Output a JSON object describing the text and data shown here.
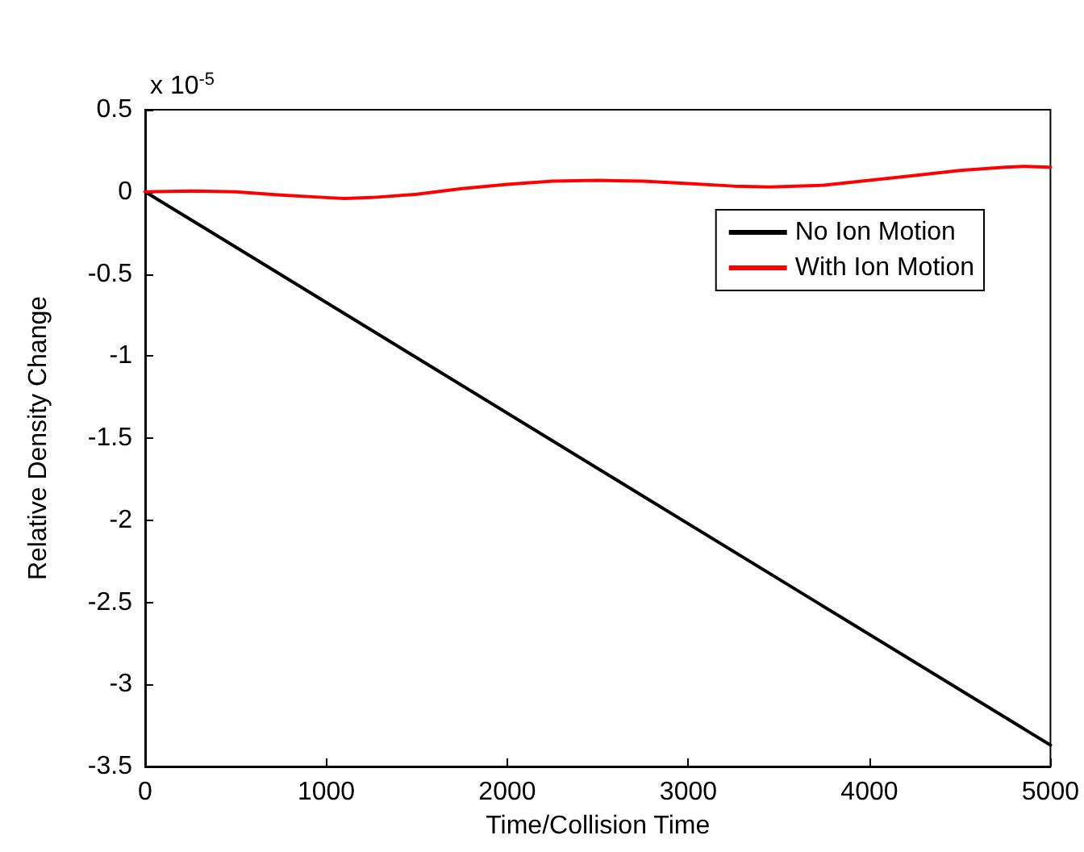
{
  "chart_data": {
    "type": "line",
    "xlabel": "Time/Collision Time",
    "ylabel": "Relative Density Change",
    "annotations": [
      "x 10$^{-5}$"
    ],
    "xlim": [
      0,
      5000
    ],
    "xticks": [
      0,
      1000,
      2000,
      3000,
      4000,
      5000
    ],
    "ylim": [
      -3.5,
      0.5
    ],
    "yticks": [
      -3.5,
      -3,
      -2.5,
      -2,
      -1.5,
      -1,
      -0.5,
      0,
      0.5
    ],
    "grid": false,
    "legend": "top right",
    "marker": "none",
    "line_style": "solid",
    "series": [
      {
        "name": "No Ion Motion",
        "color": "#000000",
        "x": [
          0,
          5000
        ],
        "values": [
          0,
          -3.37
        ]
      },
      {
        "name": "With Ion Motion",
        "color": "#ff0000",
        "x": [
          0,
          250,
          500,
          750,
          1000,
          1100,
          1250,
          1500,
          1750,
          2000,
          2250,
          2500,
          2750,
          3000,
          3250,
          3450,
          3750,
          4000,
          4250,
          4500,
          4750,
          4850,
          5000
        ],
        "values": [
          0,
          0.005,
          0,
          -0.02,
          -0.035,
          -0.04,
          -0.035,
          -0.015,
          0.02,
          0.045,
          0.065,
          0.07,
          0.065,
          0.05,
          0.035,
          0.03,
          0.04,
          0.07,
          0.1,
          0.13,
          0.15,
          0.155,
          0.15
        ]
      }
    ]
  }
}
